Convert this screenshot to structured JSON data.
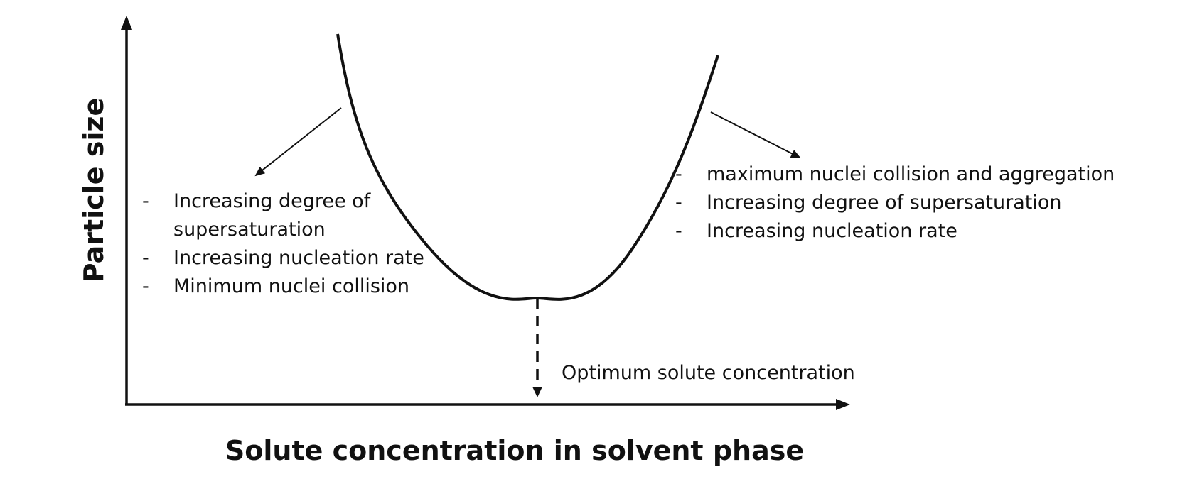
{
  "axes": {
    "y_label": "Particle size",
    "x_label": "Solute concentration in solvent phase"
  },
  "optimum": {
    "label": "Optimum solute concentration"
  },
  "left_notes": {
    "items": [
      {
        "dash": "-",
        "lines": [
          "Increasing degree of",
          "supersaturation"
        ]
      },
      {
        "dash": "-",
        "lines": [
          "Increasing nucleation rate"
        ]
      },
      {
        "dash": "-",
        "lines": [
          "Minimum nuclei collision"
        ]
      }
    ]
  },
  "right_notes": {
    "items": [
      {
        "dash": "-",
        "lines": [
          "maximum nuclei collision and aggregation"
        ]
      },
      {
        "dash": "-",
        "lines": [
          "Increasing degree of supersaturation"
        ]
      },
      {
        "dash": "-",
        "lines": [
          "Increasing nucleation rate"
        ]
      }
    ]
  }
}
